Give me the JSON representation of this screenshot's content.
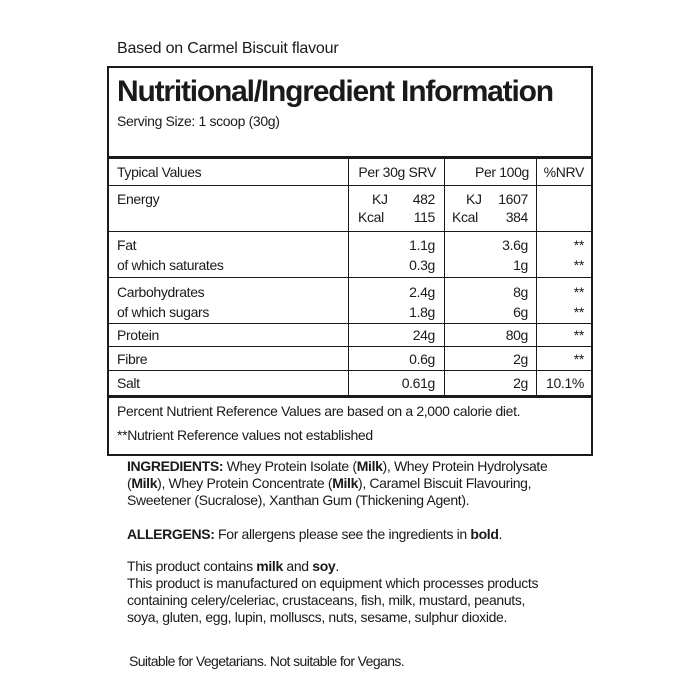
{
  "flavour_note": "Based on Carmel Biscuit flavour",
  "panel": {
    "title": "Nutritional/Ingredient Information",
    "serving_size": "Serving Size: 1 scoop (30g)"
  },
  "table": {
    "headers": [
      "Typical Values",
      "Per 30g SRV",
      "Per 100g",
      "%NRV"
    ],
    "energy": {
      "label": "Energy",
      "kj_unit": "KJ",
      "kcal_unit": "Kcal",
      "srv_kj": "482",
      "srv_kcal": "115",
      "per100_kj": "1607",
      "per100_kcal": "384"
    },
    "rows": [
      {
        "label": "Fat",
        "srv": "1.1g",
        "per100": "3.6g",
        "nrv": "**"
      },
      {
        "label": "of which saturates",
        "srv": "0.3g",
        "per100": "1g",
        "nrv": "**"
      },
      {
        "label": "Carbohydrates",
        "srv": "2.4g",
        "per100": "8g",
        "nrv": "**"
      },
      {
        "label": "of which sugars",
        "srv": "1.8g",
        "per100": "6g",
        "nrv": "**"
      },
      {
        "label": "Protein",
        "srv": "24g",
        "per100": "80g",
        "nrv": "**"
      },
      {
        "label": "Fibre",
        "srv": "0.6g",
        "per100": "2g",
        "nrv": "**"
      },
      {
        "label": "Salt",
        "srv": "0.61g",
        "per100": "2g",
        "nrv": "10.1%"
      }
    ],
    "footnotes": [
      "Percent Nutrient Reference Values are based on a 2,000 calorie diet.",
      "**Nutrient Reference values not established"
    ]
  },
  "ingredients": {
    "lines": [
      [
        {
          "t": "INGREDIENTS:",
          "b": true
        },
        {
          "t": " Whey Protein Isolate ("
        },
        {
          "t": "Milk",
          "b": true
        },
        {
          "t": "), Whey Protein Hydrolysate"
        }
      ],
      [
        {
          "t": "("
        },
        {
          "t": "Milk",
          "b": true
        },
        {
          "t": "), Whey Protein Concentrate ("
        },
        {
          "t": "Milk",
          "b": true
        },
        {
          "t": "), Caramel Biscuit Flavouring,"
        }
      ],
      [
        {
          "t": "Sweetener (Sucralose), Xanthan Gum (Thickening Agent)."
        }
      ]
    ]
  },
  "allergens": {
    "lines": [
      [
        {
          "t": "ALLERGENS:",
          "b": true
        },
        {
          "t": " For allergens please see the ingredients in "
        },
        {
          "t": "bold",
          "b": true
        },
        {
          "t": "."
        }
      ]
    ]
  },
  "contains": {
    "lines": [
      [
        {
          "t": "This product contains "
        },
        {
          "t": "milk",
          "b": true
        },
        {
          "t": " and "
        },
        {
          "t": "soy",
          "b": true
        },
        {
          "t": "."
        }
      ],
      [
        {
          "t": "This product is manufactured on equipment which processes products"
        }
      ],
      [
        {
          "t": "containing celery/celeriac, crustaceans, fish, milk, mustard, peanuts,"
        }
      ],
      [
        {
          "t": "soya, gluten, egg, lupin, molluscs, nuts, sesame, sulphur dioxide."
        }
      ]
    ]
  },
  "suitability": "Suitable for Vegetarians. Not suitable for Vegans."
}
